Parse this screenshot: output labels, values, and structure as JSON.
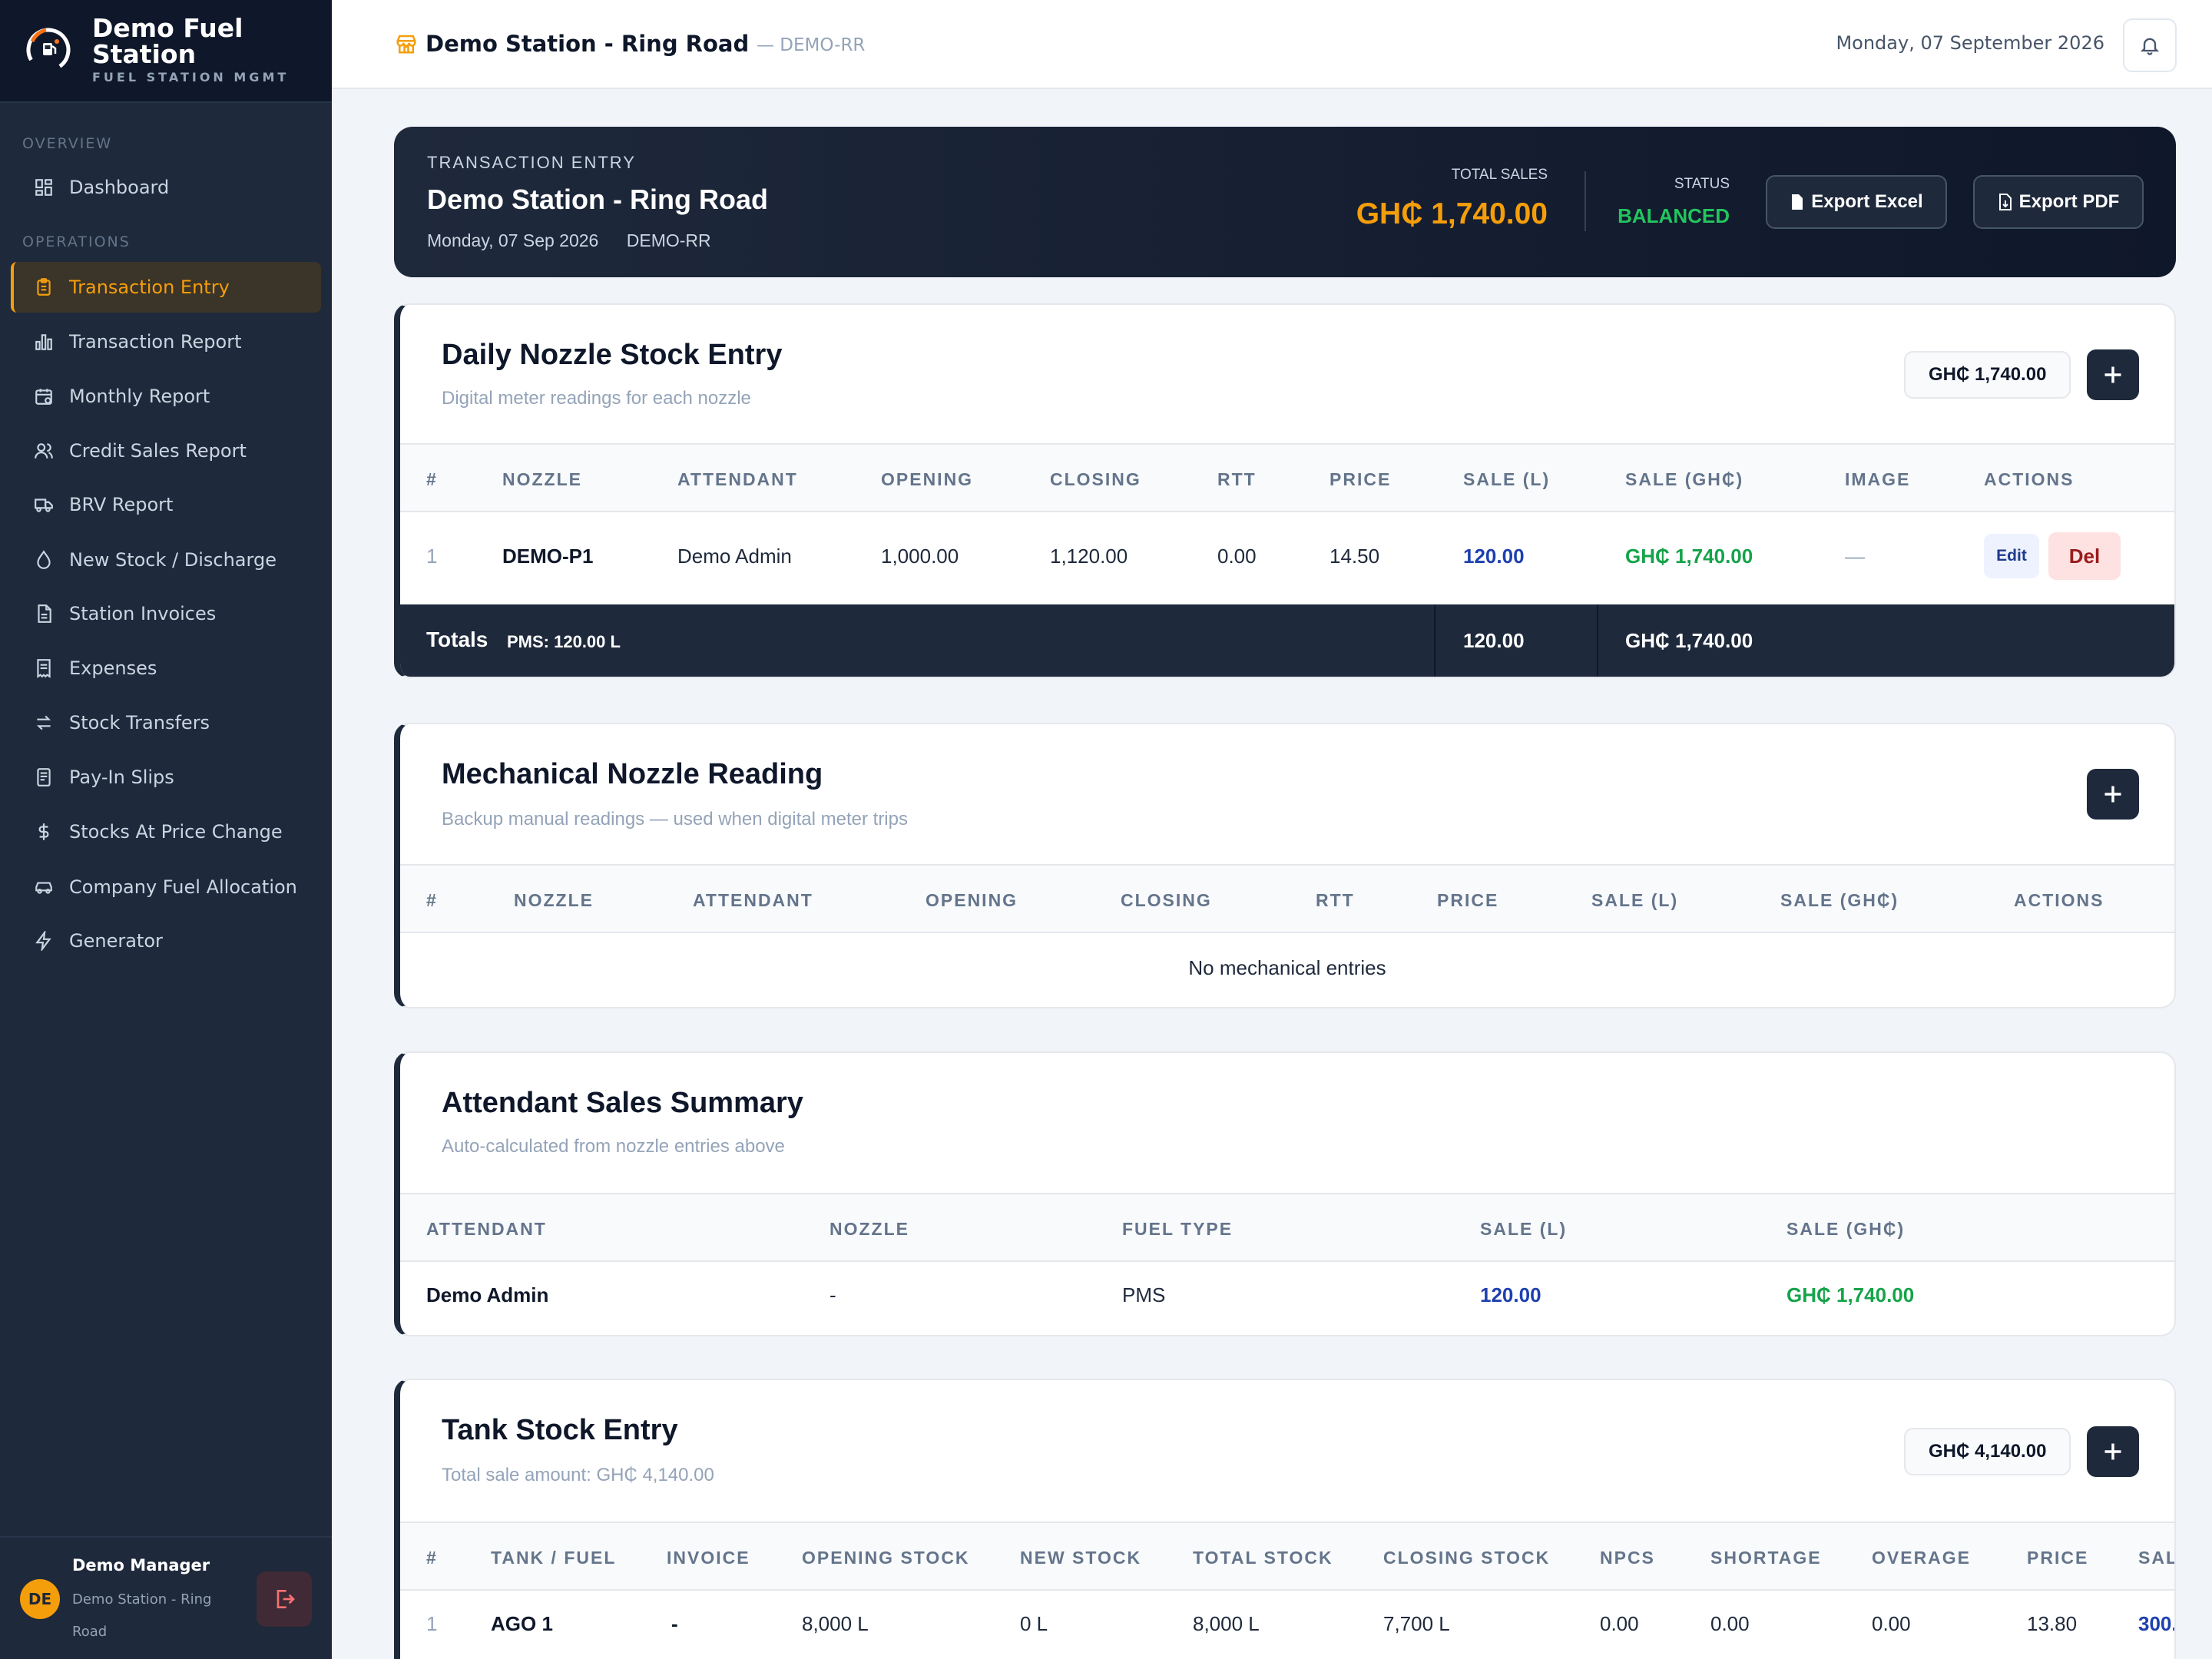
{
  "sidebar": {
    "brand_title": "Demo Fuel Station",
    "brand_sub": "FUEL STATION MGMT",
    "section_overview": "OVERVIEW",
    "section_operations": "OPERATIONS",
    "items": [
      {
        "label": "Dashboard",
        "icon": "grid-icon"
      },
      {
        "label": "Transaction Entry",
        "icon": "clipboard-icon",
        "active": true
      },
      {
        "label": "Transaction Report",
        "icon": "bar-chart-icon"
      },
      {
        "label": "Monthly Report",
        "icon": "calendar-icon"
      },
      {
        "label": "Credit Sales Report",
        "icon": "users-icon"
      },
      {
        "label": "BRV Report",
        "icon": "truck-icon"
      },
      {
        "label": "New Stock / Discharge",
        "icon": "droplet-icon"
      },
      {
        "label": "Station Invoices",
        "icon": "file-icon"
      },
      {
        "label": "Expenses",
        "icon": "receipt-icon"
      },
      {
        "label": "Stock Transfers",
        "icon": "transfer-icon"
      },
      {
        "label": "Pay-In Slips",
        "icon": "slip-icon"
      },
      {
        "label": "Stocks At Price Change",
        "icon": "dollar-icon"
      },
      {
        "label": "Company Fuel Allocation",
        "icon": "car-icon"
      },
      {
        "label": "Generator",
        "icon": "bolt-icon"
      }
    ],
    "user": {
      "initials": "DE",
      "name": "Demo Manager",
      "station": "Demo Station - Ring Road"
    }
  },
  "header": {
    "title": "Demo Station - Ring Road",
    "code": "— DEMO-RR",
    "date": "Monday, 07 September 2026"
  },
  "hero": {
    "label": "TRANSACTION ENTRY",
    "title": "Demo Station - Ring Road",
    "date": "Monday, 07 Sep 2026",
    "code": "DEMO-RR",
    "total_label": "TOTAL SALES",
    "total": "GH₵ 1,740.00",
    "status_label": "STATUS",
    "status": "BALANCED",
    "export_excel": "Export Excel",
    "export_pdf": "Export PDF"
  },
  "nozzle": {
    "title": "Daily Nozzle Stock Entry",
    "subtitle": "Digital meter readings for each nozzle",
    "total_pill": "GH₵ 1,740.00",
    "columns": [
      "#",
      "NOZZLE",
      "ATTENDANT",
      "OPENING",
      "CLOSING",
      "RTT",
      "PRICE",
      "SALE (L)",
      "SALE (GH₵)",
      "IMAGE",
      "ACTIONS"
    ],
    "rows": [
      {
        "num": "1",
        "nozzle": "DEMO-P1",
        "attendant": "Demo Admin",
        "opening": "1,000.00",
        "closing": "1,120.00",
        "rtt": "0.00",
        "price": "14.50",
        "sale_l": "120.00",
        "sale_ghs": "GH₵ 1,740.00",
        "image": "—",
        "edit": "Edit",
        "del": "Del"
      }
    ],
    "totals": {
      "label": "Totals",
      "pms": "PMS: 120.00 L",
      "sale_l": "120.00",
      "sale_ghs": "GH₵ 1,740.00"
    }
  },
  "mechanical": {
    "title": "Mechanical Nozzle Reading",
    "subtitle": "Backup manual readings — used when digital meter trips",
    "columns": [
      "#",
      "NOZZLE",
      "ATTENDANT",
      "OPENING",
      "CLOSING",
      "RTT",
      "PRICE",
      "SALE (L)",
      "SALE (GH₵)",
      "ACTIONS"
    ],
    "empty": "No mechanical entries"
  },
  "attendant": {
    "title": "Attendant Sales Summary",
    "subtitle": "Auto-calculated from nozzle entries above",
    "columns": [
      "ATTENDANT",
      "NOZZLE",
      "FUEL TYPE",
      "SALE (L)",
      "SALE (GH₵)"
    ],
    "rows": [
      {
        "attendant": "Demo Admin",
        "nozzle": "-",
        "fuel": "PMS",
        "sale_l": "120.00",
        "sale_ghs": "GH₵ 1,740.00"
      }
    ]
  },
  "tank": {
    "title": "Tank Stock Entry",
    "subtitle": "Total sale amount: GH₵ 4,140.00",
    "total_pill": "GH₵ 4,140.00",
    "columns": [
      "#",
      "TANK / FUEL",
      "INVOICE",
      "OPENING STOCK",
      "NEW STOCK",
      "TOTAL STOCK",
      "CLOSING STOCK",
      "NPCS",
      "SHORTAGE",
      "OVERAGE",
      "PRICE",
      "SAL"
    ],
    "rows": [
      {
        "num": "1",
        "tank": "AGO 1",
        "invoice": "-",
        "opening": "8,000 L",
        "new": "0 L",
        "total": "8,000 L",
        "closing": "7,700 L",
        "npcs": "0.00",
        "shortage": "0.00",
        "overage": "0.00",
        "price": "13.80",
        "sale": "300."
      }
    ]
  }
}
